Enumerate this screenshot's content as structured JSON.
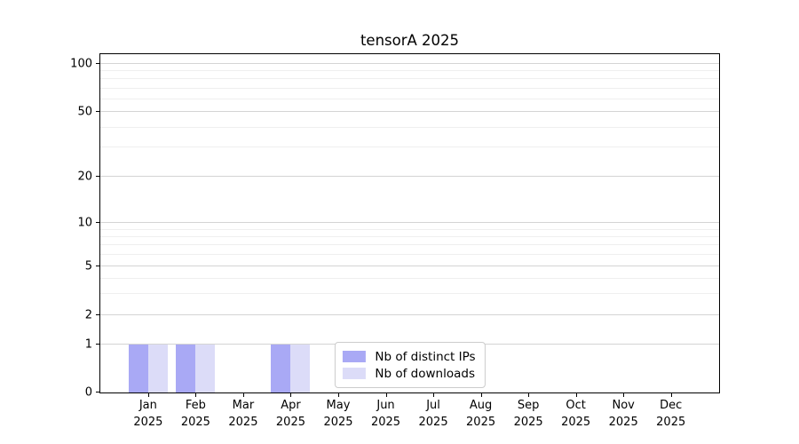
{
  "chart_data": {
    "type": "bar",
    "title": "tensorA 2025",
    "x": [
      {
        "month": "Jan",
        "year": "2025"
      },
      {
        "month": "Feb",
        "year": "2025"
      },
      {
        "month": "Mar",
        "year": "2025"
      },
      {
        "month": "Apr",
        "year": "2025"
      },
      {
        "month": "May",
        "year": "2025"
      },
      {
        "month": "Jun",
        "year": "2025"
      },
      {
        "month": "Jul",
        "year": "2025"
      },
      {
        "month": "Aug",
        "year": "2025"
      },
      {
        "month": "Sep",
        "year": "2025"
      },
      {
        "month": "Oct",
        "year": "2025"
      },
      {
        "month": "Nov",
        "year": "2025"
      },
      {
        "month": "Dec",
        "year": "2025"
      }
    ],
    "series": [
      {
        "name": "Nb of distinct IPs",
        "color": "#a9a9f5",
        "values": [
          1,
          1,
          0,
          1,
          0,
          0,
          0,
          0,
          0,
          0,
          0,
          0
        ]
      },
      {
        "name": "Nb of downloads",
        "color": "#dcdcf8",
        "values": [
          1,
          1,
          0,
          1,
          0,
          0,
          0,
          0,
          0,
          0,
          0,
          0
        ]
      }
    ],
    "y_axis": {
      "scale": "symlog",
      "ticks": [
        0,
        1,
        2,
        5,
        10,
        20,
        50,
        100
      ],
      "minor_gridlines": [
        3,
        4,
        6,
        7,
        8,
        9,
        30,
        40,
        60,
        70,
        80,
        90
      ]
    },
    "legend_position": "lower center",
    "grid": true
  }
}
